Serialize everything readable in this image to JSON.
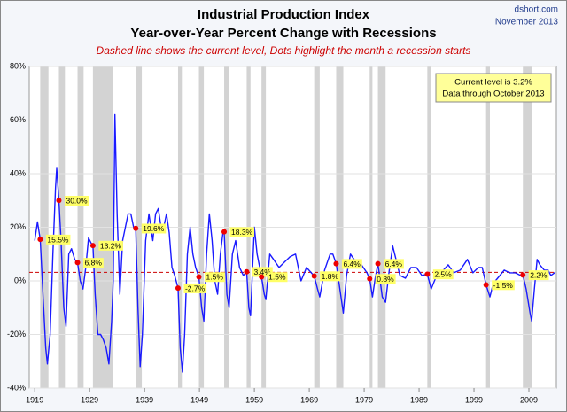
{
  "chart_data": {
    "type": "line",
    "title": "Industrial Production Index",
    "subtitle": "Year-over-Year Percent Change with Recessions",
    "note": "Dashed line shows the current level, Dots highlight the month a recession starts",
    "source": "dshort.com",
    "date": "November 2013",
    "box_lines": [
      "Current level is 3.2%",
      "Data through October 2013"
    ],
    "current_level": 3.2,
    "x": [
      1919.0,
      1919.5,
      1920.0,
      1920.5,
      1921.0,
      1921.3,
      1921.8,
      1922.3,
      1922.8,
      1923.0,
      1923.4,
      1923.8,
      1924.3,
      1924.7,
      1925.2,
      1925.7,
      1926.3,
      1926.8,
      1927.3,
      1927.8,
      1928.3,
      1928.8,
      1929.3,
      1929.6,
      1930.0,
      1930.5,
      1931.0,
      1931.5,
      1932.0,
      1932.5,
      1933.0,
      1933.3,
      1933.6,
      1934.0,
      1934.5,
      1935.0,
      1935.5,
      1936.0,
      1936.5,
      1937.0,
      1937.4,
      1937.8,
      1938.2,
      1938.6,
      1939.2,
      1939.8,
      1940.5,
      1941.0,
      1941.5,
      1942.0,
      1942.5,
      1943.0,
      1943.5,
      1944.0,
      1944.5,
      1945.1,
      1945.5,
      1945.9,
      1946.3,
      1946.8,
      1947.3,
      1947.8,
      1948.3,
      1948.9,
      1949.4,
      1949.8,
      1950.3,
      1950.8,
      1951.3,
      1951.8,
      1952.3,
      1952.8,
      1953.3,
      1953.5,
      1954.0,
      1954.4,
      1955.0,
      1955.6,
      1956.3,
      1957.0,
      1957.6,
      1958.0,
      1958.3,
      1959.0,
      1959.5,
      1960.3,
      1960.8,
      1961.1,
      1961.8,
      1962.5,
      1963.5,
      1964.5,
      1965.5,
      1966.5,
      1967.5,
      1968.5,
      1969.9,
      1970.5,
      1970.9,
      1971.8,
      1972.8,
      1973.3,
      1973.9,
      1974.5,
      1975.2,
      1975.8,
      1976.5,
      1977.5,
      1978.5,
      1979.5,
      1980.0,
      1980.5,
      1981.0,
      1981.5,
      1982.3,
      1982.9,
      1983.5,
      1984.2,
      1984.8,
      1985.5,
      1986.5,
      1987.5,
      1988.5,
      1989.5,
      1990.5,
      1991.2,
      1992.0,
      1993.0,
      1994.3,
      1995.3,
      1996.5,
      1997.8,
      1998.8,
      1999.8,
      2000.5,
      2001.2,
      2001.9,
      2002.5,
      2003.3,
      2004.5,
      2005.5,
      2006.5,
      2007.5,
      2007.9,
      2008.5,
      2009.2,
      2009.5,
      2010.0,
      2010.5,
      2011.0,
      2011.8,
      2012.5,
      2013.0,
      2013.8
    ],
    "series": [
      {
        "color": "#1a1aff",
        "values": [
          15,
          22,
          15.5,
          -5,
          -25,
          -31,
          -20,
          10,
          35,
          42,
          30,
          15,
          -10,
          -17,
          10,
          12,
          8,
          6.8,
          0,
          -3,
          5,
          16,
          14,
          13.2,
          -5,
          -20,
          -20,
          -22,
          -25,
          -31,
          -15,
          0,
          62,
          25,
          -5,
          15,
          20,
          25,
          25,
          20,
          19.6,
          -10,
          -32,
          -20,
          15,
          25,
          15,
          25,
          27,
          20,
          20,
          25,
          18,
          5,
          2,
          -2.7,
          -25,
          -34,
          -20,
          10,
          20,
          10,
          5,
          1.5,
          -10,
          -15,
          10,
          25,
          15,
          0,
          -5,
          10,
          18.3,
          18.3,
          -5,
          -10,
          10,
          15,
          5,
          2,
          3.4,
          -10,
          -13,
          20,
          10,
          1.5,
          -5,
          -7,
          10,
          8,
          5,
          7,
          9,
          10,
          0,
          5,
          1.8,
          -3,
          -6,
          4,
          10,
          10,
          6.4,
          -2,
          -12,
          2,
          10,
          7,
          6,
          3,
          0.8,
          -6,
          1,
          6.4,
          -6,
          -8,
          3,
          13,
          8,
          2,
          1,
          5,
          5,
          2,
          2.5,
          -3,
          1,
          3,
          6,
          3,
          4,
          8,
          3,
          5,
          5,
          -1.5,
          -6,
          -1,
          1,
          4,
          3,
          3,
          2,
          2.2,
          -3,
          -12,
          -15,
          -3,
          8,
          6,
          4,
          4,
          2,
          3.2
        ]
      }
    ],
    "recession_starts": [
      1920.0,
      1923.4,
      1926.8,
      1929.6,
      1937.4,
      1945.1,
      1948.9,
      1953.5,
      1957.6,
      1960.3,
      1969.9,
      1973.9,
      1980.0,
      1981.5,
      1990.5,
      2001.2,
      2007.9
    ],
    "recession_ends": [
      1921.5,
      1924.5,
      1927.9,
      1933.2,
      1938.5,
      1945.8,
      1949.8,
      1954.4,
      1958.3,
      1961.1,
      1970.9,
      1975.2,
      1980.5,
      1982.9,
      1991.2,
      2001.9,
      2009.5
    ],
    "recession_values": [
      15.5,
      30.0,
      6.8,
      13.2,
      19.6,
      -2.7,
      1.5,
      18.3,
      3.4,
      1.5,
      1.8,
      6.4,
      0.8,
      6.4,
      2.5,
      -1.5,
      2.2
    ],
    "recession_value_labels": [
      "15.5%",
      "30.0%",
      "6.8%",
      "13.2%",
      "19.6%",
      "-2.7%",
      "1.5%",
      "18.3%",
      "3.4%",
      "1.5%",
      "1.8%",
      "6.4%",
      "0.8%",
      "6.4%",
      "2.5%",
      "-1.5%",
      "2.2%"
    ],
    "xlim": [
      1918,
      2014
    ],
    "xticks": [
      1919,
      1929,
      1939,
      1949,
      1959,
      1969,
      1979,
      1989,
      1999,
      2009
    ],
    "ylim": [
      -40,
      80
    ],
    "yticks": [
      {
        "value": -40,
        "label": "-40%"
      },
      {
        "value": -20,
        "label": "-20%"
      },
      {
        "value": 0,
        "label": "0%"
      },
      {
        "value": 20,
        "label": "20%"
      },
      {
        "value": 40,
        "label": "40%"
      },
      {
        "value": 60,
        "label": "60%"
      },
      {
        "value": 80,
        "label": "80%"
      }
    ],
    "grid": true
  }
}
